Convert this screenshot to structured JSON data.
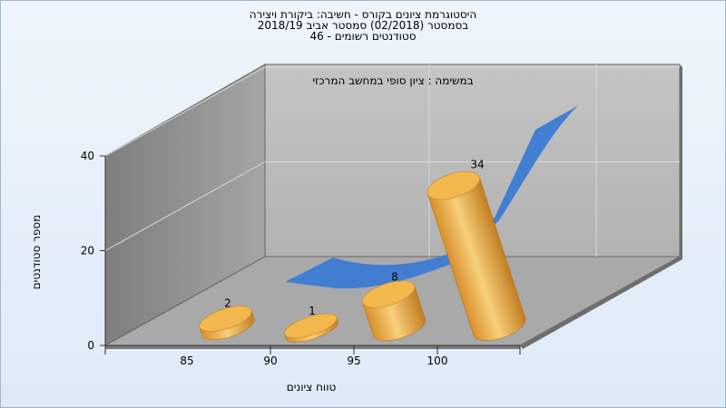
{
  "title_lines": [
    "היסטוגרמת ציונים בקורס - חשיבה: ביקורת ויצירה",
    "בסמסטר  (02/2018)  סמסטר אביב 2018/19",
    "סטודנטים רשומים - 46"
  ],
  "colors": {
    "bar_light": "#f5c46a",
    "bar_dark": "#c9872a",
    "curve": "#3b7bd4",
    "wall": "#b8b8b8",
    "floor": "#a8a8a8",
    "side_wall": "#8e8e8e"
  },
  "chart_data": {
    "type": "bar",
    "title": "היסטוגרמת ציונים בקורס - חשיבה: ביקורת ויצירה",
    "subtitle": "במשימה : ציון סופי במחשב המרכזי",
    "xlabel": "טווח ציונים",
    "ylabel": "מספר סטודנטים",
    "categories": [
      "85",
      "90",
      "95",
      "100"
    ],
    "values": [
      2,
      1,
      8,
      34
    ],
    "ylim": [
      0,
      40
    ],
    "yticks": [
      0,
      20,
      40
    ],
    "grid": true,
    "overlay": "distribution-curve"
  }
}
